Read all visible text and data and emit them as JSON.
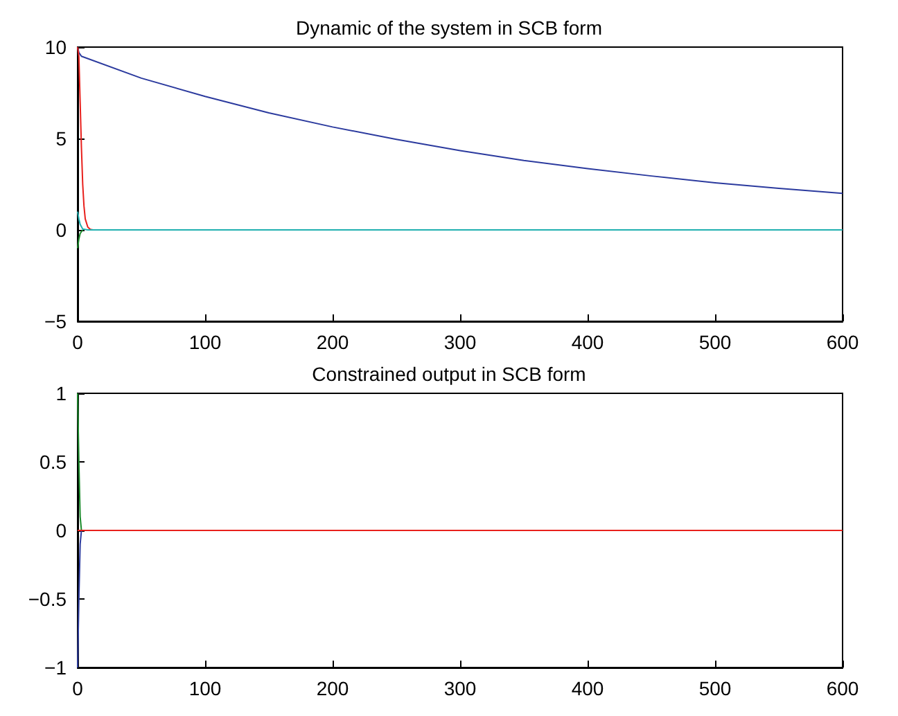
{
  "chart_data": [
    {
      "type": "line",
      "title": "Dynamic of the system in SCB form",
      "xlim": [
        0,
        600
      ],
      "xticks": [
        0,
        100,
        200,
        300,
        400,
        500,
        600
      ],
      "ylim": [
        -5,
        10
      ],
      "yticks": [
        {
          "value": -5,
          "label": "−5"
        },
        0,
        5,
        10
      ],
      "grid": false,
      "marker": "none",
      "line_style": "solid",
      "series": [
        {
          "color": "#2b3a9e",
          "x": [
            0,
            1,
            3,
            50,
            100,
            150,
            200,
            250,
            300,
            350,
            400,
            450,
            500,
            550,
            600
          ],
          "values": [
            10,
            9.7,
            9.5,
            8.3,
            7.3,
            6.4,
            5.63,
            4.95,
            4.34,
            3.8,
            3.35,
            2.95,
            2.58,
            2.27,
            2.0
          ]
        },
        {
          "color": "#1a8a2a",
          "x": [
            0,
            1,
            2,
            4
          ],
          "values": [
            -1,
            -0.5,
            -0.2,
            0
          ]
        },
        {
          "color": "#e8201c",
          "x": [
            0,
            1,
            2,
            3,
            4,
            5,
            6,
            8,
            10,
            12
          ],
          "values": [
            10,
            9.5,
            7,
            4.5,
            2.5,
            1.3,
            0.6,
            0.15,
            0.03,
            0
          ]
        },
        {
          "color": "#20b0b0",
          "x": [
            0,
            1,
            2,
            4,
            8,
            600
          ],
          "values": [
            1,
            0.6,
            0.3,
            0.05,
            0,
            0
          ]
        }
      ]
    },
    {
      "type": "line",
      "title": "Constrained output in SCB form",
      "xlim": [
        0,
        600
      ],
      "xticks": [
        0,
        100,
        200,
        300,
        400,
        500,
        600
      ],
      "ylim": [
        -1,
        1
      ],
      "yticks": [
        {
          "value": -1,
          "label": "−1"
        },
        {
          "value": -0.5,
          "label": "−0.5"
        },
        0,
        0.5,
        1
      ],
      "grid": false,
      "marker": "none",
      "line_style": "solid",
      "series": [
        {
          "color": "#1a8a2a",
          "x": [
            0,
            1,
            2,
            3
          ],
          "values": [
            1,
            0.5,
            0.1,
            0
          ]
        },
        {
          "color": "#2b3a9e",
          "x": [
            0,
            1,
            2,
            3
          ],
          "values": [
            -1,
            -0.5,
            -0.1,
            0
          ]
        },
        {
          "color": "#e8201c",
          "x": [
            0,
            600
          ],
          "values": [
            0,
            0
          ]
        }
      ]
    }
  ]
}
